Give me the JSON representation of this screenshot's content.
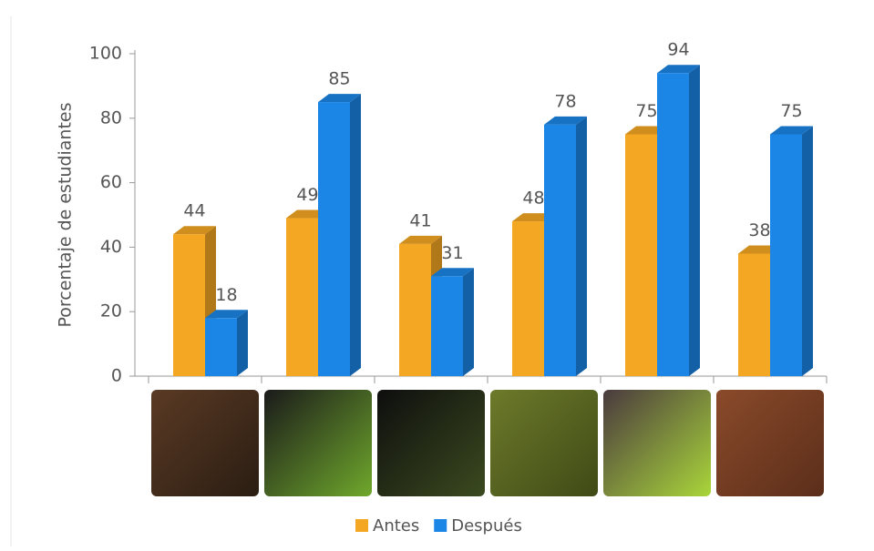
{
  "chart_data": {
    "type": "bar3d",
    "y_label": "Porcentaje de estudiantes",
    "categories": [
      null,
      null,
      null,
      null,
      null,
      null
    ],
    "series": [
      {
        "name": "Antes",
        "color": "#f4a722",
        "values": [
          44,
          49,
          41,
          48,
          75,
          38
        ]
      },
      {
        "name": "Después",
        "color": "#1b86e6",
        "values": [
          18,
          85,
          31,
          78,
          94,
          75
        ]
      }
    ],
    "ylim": [
      0,
      100
    ],
    "yticks": [
      0,
      20,
      40,
      60,
      80,
      100
    ],
    "grid": false
  }
}
